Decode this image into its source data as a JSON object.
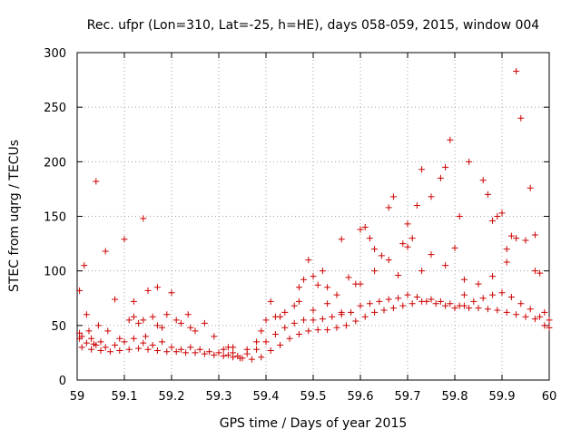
{
  "chart_data": {
    "type": "scatter",
    "title": "Rec. ufpr (Lon=310, Lat=-25, h=HE), days 058-059, 2015, window 004",
    "xlabel": "GPS time / Days of year 2015",
    "ylabel": "STEC from uqrg / TECUs",
    "xlim": [
      59,
      60
    ],
    "ylim": [
      0,
      300
    ],
    "xticks": [
      59,
      59.1,
      59.2,
      59.3,
      59.4,
      59.5,
      59.6,
      59.7,
      59.8,
      59.9,
      60
    ],
    "xtick_labels": [
      "59",
      "59.1",
      "59.2",
      "59.3",
      "59.4",
      "59.5",
      "59.6",
      "59.7",
      "59.8",
      "59.9",
      "60"
    ],
    "yticks": [
      0,
      50,
      100,
      150,
      200,
      250,
      300
    ],
    "ytick_labels": [
      "0",
      "50",
      "100",
      "150",
      "200",
      "250",
      "300"
    ],
    "grid": true,
    "marker": "+",
    "color": "#cc0000",
    "series": [
      {
        "name": "STEC",
        "x": [
          59.005,
          59.005,
          59.01,
          59.015,
          59.02,
          59.025,
          59.03,
          59.035,
          59.04,
          59.045,
          59.05,
          59.06,
          59.065,
          59.08,
          59.09,
          59.1,
          59.11,
          59.12,
          59.13,
          59.14,
          59.145,
          59.15,
          59.16,
          59.17,
          59.18,
          59.19,
          59.2,
          59.22,
          59.235,
          59.25,
          59.27,
          59.29,
          59.31,
          59.32,
          59.33,
          59.345,
          59.36,
          59.38,
          59.39,
          59.4,
          59.41,
          59.43,
          59.44,
          59.46,
          59.47,
          59.48,
          59.49,
          59.5,
          59.51,
          59.52,
          59.53,
          59.55,
          59.56,
          59.575,
          59.59,
          59.6,
          59.61,
          59.62,
          59.63,
          59.645,
          59.66,
          59.67,
          59.69,
          59.7,
          59.71,
          59.72,
          59.73,
          59.75,
          59.77,
          59.78,
          59.79,
          59.8,
          59.81,
          59.82,
          59.83,
          59.86,
          59.87,
          59.88,
          59.89,
          59.9,
          59.91,
          59.92,
          59.93,
          59.94,
          59.96,
          59.97,
          59.98,
          59.99,
          60.0,
          59.005,
          59.02,
          59.04,
          59.06,
          59.08,
          59.1,
          59.12,
          59.14,
          59.16,
          59.18,
          59.2,
          59.22,
          59.24,
          59.26,
          59.28,
          59.3,
          59.32,
          59.34,
          59.36,
          59.38,
          59.4,
          59.42,
          59.44,
          59.46,
          59.48,
          59.5,
          59.52,
          59.54,
          59.56,
          59.58,
          59.6,
          59.62,
          59.64,
          59.66,
          59.68,
          59.7,
          59.72,
          59.74,
          59.76,
          59.78,
          59.8,
          59.82,
          59.84,
          59.86,
          59.88,
          59.9,
          59.92,
          59.94,
          59.96,
          59.98,
          60.0,
          59.01,
          59.03,
          59.05,
          59.07,
          59.09,
          59.11,
          59.13,
          59.15,
          59.17,
          59.19,
          59.21,
          59.23,
          59.25,
          59.27,
          59.29,
          59.31,
          59.33,
          59.35,
          59.37,
          59.39,
          59.41,
          59.43,
          59.45,
          59.47,
          59.49,
          59.51,
          59.53,
          59.55,
          59.57,
          59.59,
          59.61,
          59.63,
          59.65,
          59.67,
          59.69,
          59.71,
          59.73,
          59.75,
          59.77,
          59.79,
          59.81,
          59.83,
          59.85,
          59.87,
          59.89,
          59.91,
          59.93,
          59.95,
          59.97,
          59.99,
          59.12,
          59.14,
          59.17,
          59.21,
          59.24,
          59.33,
          59.42,
          59.47,
          59.5,
          59.53,
          59.56,
          59.6,
          59.63,
          59.66,
          59.68,
          59.7,
          59.73,
          59.75,
          59.78,
          59.82,
          59.85,
          59.88,
          59.91,
          59.93,
          59.95,
          59.97
        ],
        "y": [
          82,
          43,
          40,
          105,
          60,
          45,
          38,
          33,
          182,
          50,
          35,
          118,
          45,
          74,
          38,
          129,
          55,
          72,
          52,
          148,
          40,
          82,
          58,
          85,
          48,
          60,
          80,
          52,
          60,
          45,
          52,
          40,
          28,
          30,
          25,
          20,
          28,
          35,
          45,
          55,
          72,
          58,
          62,
          68,
          85,
          92,
          110,
          95,
          87,
          100,
          85,
          78,
          129,
          94,
          88,
          138,
          140,
          130,
          120,
          114,
          158,
          168,
          125,
          143,
          130,
          160,
          193,
          168,
          185,
          195,
          220,
          121,
          150,
          78,
          200,
          183,
          170,
          146,
          150,
          153,
          108,
          132,
          283,
          240,
          176,
          133,
          98,
          62,
          48,
          38,
          34,
          32,
          30,
          32,
          35,
          38,
          34,
          32,
          35,
          30,
          28,
          30,
          28,
          26,
          25,
          23,
          22,
          24,
          28,
          35,
          42,
          48,
          52,
          55,
          55,
          56,
          58,
          60,
          62,
          68,
          70,
          72,
          74,
          75,
          78,
          76,
          72,
          70,
          68,
          66,
          68,
          72,
          75,
          78,
          80,
          76,
          70,
          65,
          58,
          55,
          30,
          28,
          27,
          26,
          27,
          28,
          29,
          28,
          27,
          26,
          26,
          25,
          25,
          24,
          23,
          22,
          21,
          20,
          19,
          21,
          27,
          32,
          38,
          42,
          45,
          46,
          46,
          48,
          50,
          54,
          58,
          62,
          64,
          66,
          68,
          70,
          72,
          74,
          72,
          70,
          68,
          66,
          66,
          65,
          64,
          62,
          60,
          58,
          56,
          50,
          58,
          55,
          50,
          55,
          48,
          30,
          58,
          72,
          64,
          70,
          62,
          88,
          100,
          110,
          96,
          122,
          100,
          115,
          105,
          92,
          88,
          95,
          120,
          130,
          128,
          100
        ]
      }
    ]
  }
}
